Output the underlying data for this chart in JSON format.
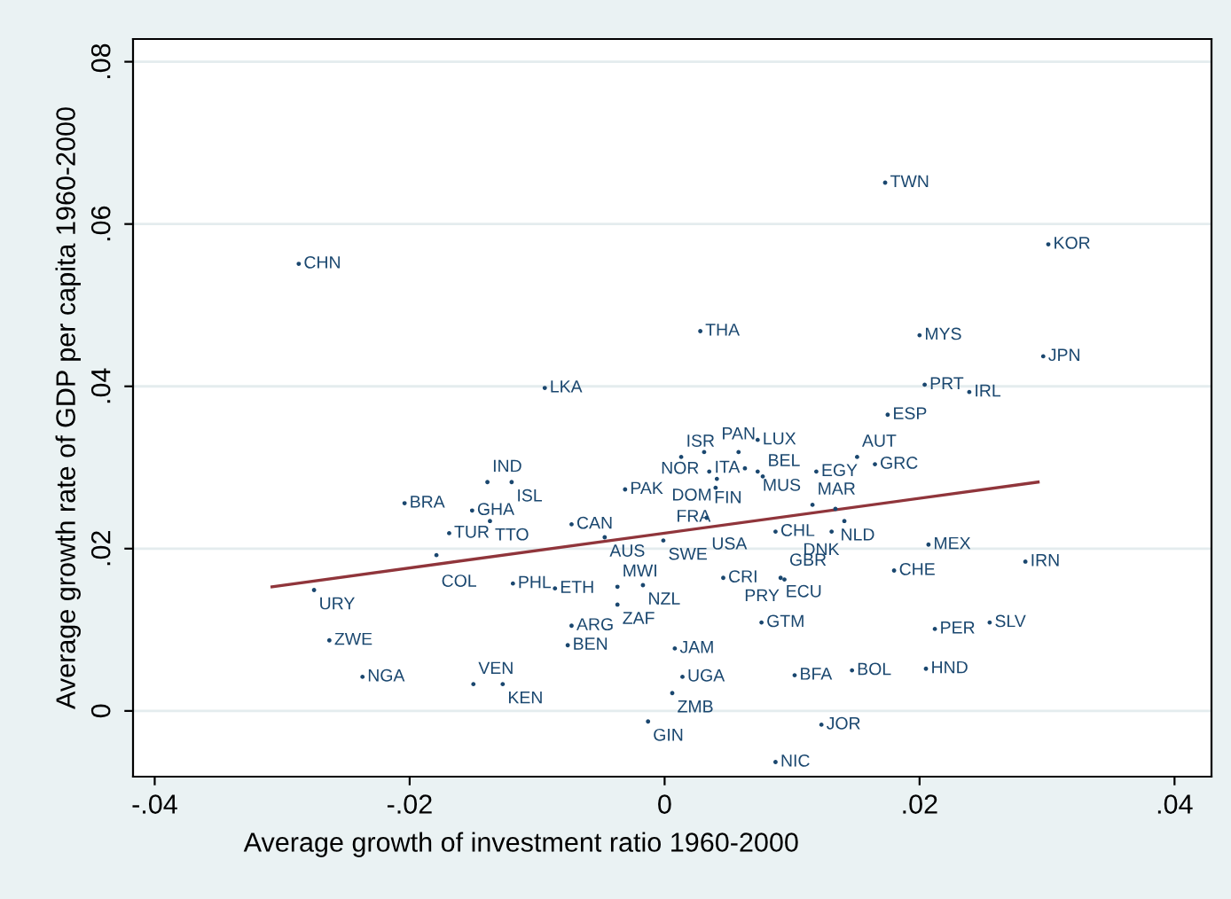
{
  "chart_data": {
    "type": "scatter",
    "xlabel": "Average growth of investment ratio 1960-2000",
    "ylabel": "Average growth rate of GDP per capita 1960-2000",
    "xlim": [
      -0.0417,
      0.0429
    ],
    "ylim": [
      -0.0081,
      0.0828
    ],
    "xticks": [
      {
        "value": -0.04,
        "label": "-.04"
      },
      {
        "value": -0.02,
        "label": "-.02"
      },
      {
        "value": 0,
        "label": "0"
      },
      {
        "value": 0.02,
        "label": ".02"
      },
      {
        "value": 0.04,
        "label": ".04"
      }
    ],
    "yticks": [
      {
        "value": 0,
        "label": "0"
      },
      {
        "value": 0.02,
        "label": ".02"
      },
      {
        "value": 0.04,
        "label": ".04"
      },
      {
        "value": 0.06,
        "label": ".06"
      },
      {
        "value": 0.08,
        "label": ".08"
      }
    ],
    "grid": "y",
    "series": [
      {
        "color": "#1a476f",
        "marker": "circle",
        "x": [
          -0.0287,
          0.0173,
          0.0301,
          0.0028,
          0.02,
          0.0297,
          -0.0094,
          0.0204,
          0.0239,
          0.0175,
          0.0073,
          0.0013,
          0.0031,
          0.0058,
          0.0063,
          0.0073,
          0.0151,
          0.0165,
          0.0035,
          0.0041,
          0.0077,
          0.004,
          0.0119,
          -0.0139,
          -0.012,
          -0.0031,
          -0.0204,
          -0.0151,
          -0.0137,
          -0.0073,
          -0.0047,
          -0.0001,
          0.0033,
          -0.0169,
          -0.0179,
          0.0116,
          0.0134,
          0.0141,
          0.0087,
          0.0131,
          0.0207,
          -0.0275,
          -0.0119,
          -0.0086,
          -0.0037,
          -0.0017,
          -0.0037,
          0.0046,
          0.0091,
          0.0094,
          0.018,
          0.0283,
          -0.0073,
          -0.0076,
          -0.0263,
          0.0076,
          0.0008,
          0.0212,
          0.0255,
          -0.0237,
          -0.015,
          -0.0127,
          0.0014,
          0.0006,
          0.0102,
          0.0147,
          0.0205,
          -0.0013,
          0.0123,
          0.0087
        ],
        "values": [
          0.0551,
          0.0651,
          0.0575,
          0.0468,
          0.0463,
          0.0437,
          0.0398,
          0.0402,
          0.0393,
          0.0365,
          0.0334,
          0.0313,
          0.0319,
          0.0319,
          0.0299,
          0.0295,
          0.0313,
          0.0304,
          0.0295,
          0.0286,
          0.0289,
          0.0275,
          0.0295,
          0.0282,
          0.0282,
          0.0273,
          0.0256,
          0.0247,
          0.0234,
          0.023,
          0.0214,
          0.021,
          0.0238,
          0.0219,
          0.0192,
          0.0254,
          0.0249,
          0.0234,
          0.0221,
          0.0221,
          0.0205,
          0.0149,
          0.0157,
          0.0151,
          0.0153,
          0.0155,
          0.0131,
          0.0164,
          0.0164,
          0.0162,
          0.0173,
          0.0184,
          0.0105,
          0.0081,
          0.0087,
          0.0109,
          0.0077,
          0.0101,
          0.0109,
          0.0042,
          0.0033,
          0.0033,
          0.0042,
          0.0022,
          0.0044,
          0.005,
          0.0052,
          -0.0013,
          -0.0017,
          -0.0063
        ]
      },
      {
        "type": "line",
        "color": "#90353b",
        "x": [
          -0.0308,
          0.0293
        ],
        "values": [
          0.0153,
          0.0282
        ]
      }
    ],
    "annotations": [
      {
        "text": "CHN",
        "x": -0.0287,
        "y": 0.0551
      },
      {
        "text": "TWN",
        "x": 0.0173,
        "y": 0.0651
      },
      {
        "text": "KOR",
        "x": 0.0301,
        "y": 0.0575
      },
      {
        "text": "THA",
        "x": 0.0028,
        "y": 0.0468
      },
      {
        "text": "MYS",
        "x": 0.02,
        "y": 0.0463
      },
      {
        "text": "JPN",
        "x": 0.0297,
        "y": 0.0437
      },
      {
        "text": "LKA",
        "x": -0.0094,
        "y": 0.0398
      },
      {
        "text": "PRT",
        "x": 0.0204,
        "y": 0.0402
      },
      {
        "text": "IRL",
        "x": 0.0239,
        "y": 0.0393
      },
      {
        "text": "ESP",
        "x": 0.0175,
        "y": 0.0365
      },
      {
        "text": "LUX",
        "x": 0.0073,
        "y": 0.0334
      },
      {
        "text": "ISR",
        "x": 0.0013,
        "y": 0.0313
      },
      {
        "text": "NOR",
        "x": 0.0031,
        "y": 0.0319
      },
      {
        "text": "PAN",
        "x": 0.0058,
        "y": 0.0319
      },
      {
        "text": "ITA",
        "x": 0.0063,
        "y": 0.0299
      },
      {
        "text": "MUS",
        "x": 0.0073,
        "y": 0.0295
      },
      {
        "text": "AUT",
        "x": 0.0151,
        "y": 0.0313
      },
      {
        "text": "GRC",
        "x": 0.0165,
        "y": 0.0304
      },
      {
        "text": "FIN",
        "x": 0.0035,
        "y": 0.0295
      },
      {
        "text": "DOM",
        "x": 0.0041,
        "y": 0.0286
      },
      {
        "text": "BEL",
        "x": 0.0077,
        "y": 0.0289
      },
      {
        "text": "FRA",
        "x": 0.004,
        "y": 0.0275
      },
      {
        "text": "EGY",
        "x": 0.0119,
        "y": 0.0295
      },
      {
        "text": "IND",
        "x": -0.0139,
        "y": 0.0282
      },
      {
        "text": "ISL",
        "x": -0.012,
        "y": 0.0282
      },
      {
        "text": "PAK",
        "x": -0.0031,
        "y": 0.0273
      },
      {
        "text": "BRA",
        "x": -0.0204,
        "y": 0.0256
      },
      {
        "text": "GHA",
        "x": -0.0151,
        "y": 0.0247
      },
      {
        "text": "TTO",
        "x": -0.0137,
        "y": 0.0234
      },
      {
        "text": "CAN",
        "x": -0.0073,
        "y": 0.023
      },
      {
        "text": "AUS",
        "x": -0.0047,
        "y": 0.0214
      },
      {
        "text": "SWE",
        "x": -0.0001,
        "y": 0.021
      },
      {
        "text": "USA",
        "x": 0.0033,
        "y": 0.0238
      },
      {
        "text": "TUR",
        "x": -0.0169,
        "y": 0.0219
      },
      {
        "text": "COL",
        "x": -0.0179,
        "y": 0.0192
      },
      {
        "text": "MAR",
        "x": 0.0116,
        "y": 0.0254
      },
      {
        "text": "NLD",
        "x": 0.0134,
        "y": 0.0249
      },
      {
        "text": "DNK",
        "x": 0.0141,
        "y": 0.0234
      },
      {
        "text": "CHL",
        "x": 0.0087,
        "y": 0.0221
      },
      {
        "text": "GBR",
        "x": 0.0131,
        "y": 0.0221
      },
      {
        "text": "MEX",
        "x": 0.0207,
        "y": 0.0205
      },
      {
        "text": "URY",
        "x": -0.0275,
        "y": 0.0149
      },
      {
        "text": "PHL",
        "x": -0.0119,
        "y": 0.0157
      },
      {
        "text": "ETH",
        "x": -0.0086,
        "y": 0.0151
      },
      {
        "text": "MWI",
        "x": -0.0037,
        "y": 0.0153
      },
      {
        "text": "NZL",
        "x": -0.0017,
        "y": 0.0155
      },
      {
        "text": "ZAF",
        "x": -0.0037,
        "y": 0.0131
      },
      {
        "text": "CRI",
        "x": 0.0046,
        "y": 0.0164
      },
      {
        "text": "ECU",
        "x": 0.0091,
        "y": 0.0164
      },
      {
        "text": "PRY",
        "x": 0.0094,
        "y": 0.0162
      },
      {
        "text": "CHE",
        "x": 0.018,
        "y": 0.0173
      },
      {
        "text": "IRN",
        "x": 0.0283,
        "y": 0.0184
      },
      {
        "text": "ARG",
        "x": -0.0073,
        "y": 0.0105
      },
      {
        "text": "BEN",
        "x": -0.0076,
        "y": 0.0081
      },
      {
        "text": "ZWE",
        "x": -0.0263,
        "y": 0.0087
      },
      {
        "text": "GTM",
        "x": 0.0076,
        "y": 0.0109
      },
      {
        "text": "JAM",
        "x": 0.0008,
        "y": 0.0077
      },
      {
        "text": "PER",
        "x": 0.0212,
        "y": 0.0101
      },
      {
        "text": "SLV",
        "x": 0.0255,
        "y": 0.0109
      },
      {
        "text": "NGA",
        "x": -0.0237,
        "y": 0.0042
      },
      {
        "text": "VEN",
        "x": -0.015,
        "y": 0.0033
      },
      {
        "text": "KEN",
        "x": -0.0127,
        "y": 0.0033
      },
      {
        "text": "UGA",
        "x": 0.0014,
        "y": 0.0042
      },
      {
        "text": "ZMB",
        "x": 0.0006,
        "y": 0.0022
      },
      {
        "text": "BFA",
        "x": 0.0102,
        "y": 0.0044
      },
      {
        "text": "BOL",
        "x": 0.0147,
        "y": 0.005
      },
      {
        "text": "HND",
        "x": 0.0205,
        "y": 0.0052
      },
      {
        "text": "GIN",
        "x": -0.0013,
        "y": -0.0013
      },
      {
        "text": "JOR",
        "x": 0.0123,
        "y": -0.0017
      },
      {
        "text": "NIC",
        "x": 0.0087,
        "y": -0.0063
      }
    ]
  }
}
